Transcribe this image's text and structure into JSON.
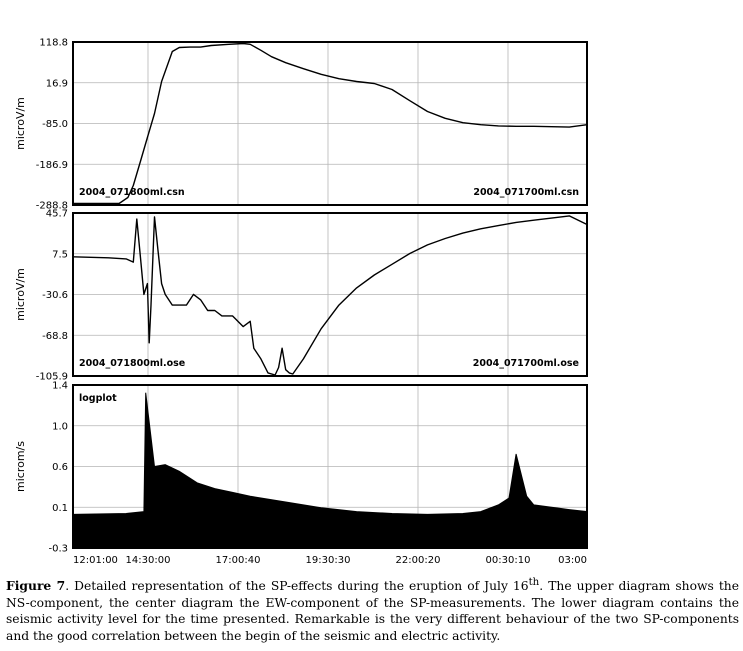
{
  "chart_data": [
    {
      "type": "line",
      "ylabel": "microV/m",
      "yticks": [
        "118.8",
        "16.9",
        "-85.0",
        "-186.9",
        "-288.8"
      ],
      "ylim": [
        -288.8,
        118.8
      ],
      "xlim": [
        0,
        14.5
      ],
      "grid": true,
      "annotation_left": "2004_071800ml.csn",
      "annotation_right": "2004_071700ml.csn",
      "series": [
        {
          "x": [
            0,
            0.3,
            0.8,
            1.3,
            1.55,
            1.7,
            1.9,
            2.1,
            2.3,
            2.5,
            2.8,
            3.0,
            3.3,
            3.6,
            3.9,
            4.4,
            4.8,
            5.0,
            5.3,
            5.6,
            6.0,
            6.5,
            7.0,
            7.5,
            8.0,
            8.5,
            9.0,
            9.5,
            10.0,
            10.5,
            11.0,
            11.5,
            12.0,
            12.5,
            13.0,
            13.5,
            14.0,
            14.5
          ],
          "y": [
            -285,
            -285,
            -285,
            -285,
            -270,
            -240,
            -180,
            -120,
            -60,
            20,
            95,
            105,
            106,
            106,
            110,
            113,
            115,
            113,
            98,
            82,
            67,
            52,
            38,
            27,
            20,
            15,
            0,
            -28,
            -55,
            -72,
            -83,
            -88,
            -91,
            -92,
            -92,
            -93,
            -94,
            -88
          ]
        }
      ]
    },
    {
      "type": "line",
      "ylabel": "microV/m",
      "yticks": [
        "45.7",
        "7.5",
        "-30.6",
        "-68.8",
        "-105.9"
      ],
      "ylim": [
        -105.9,
        45.7
      ],
      "xlim": [
        0,
        14.5
      ],
      "grid": true,
      "annotation_left": "2004_071800ml.ose",
      "annotation_right": "2004_071700ml.ose",
      "series": [
        {
          "x": [
            0,
            0.5,
            1.0,
            1.5,
            1.7,
            1.8,
            1.9,
            2.0,
            2.1,
            2.15,
            2.2,
            2.3,
            2.4,
            2.5,
            2.6,
            2.8,
            3.0,
            3.2,
            3.4,
            3.6,
            3.8,
            4.0,
            4.2,
            4.5,
            4.8,
            5.0,
            5.1,
            5.3,
            5.5,
            5.7,
            5.8,
            5.9,
            6.0,
            6.1,
            6.2,
            6.5,
            7.0,
            7.5,
            8.0,
            8.5,
            9.0,
            9.5,
            10.0,
            10.5,
            11.0,
            11.5,
            12.0,
            12.5,
            13.0,
            13.5,
            14.0,
            14.5
          ],
          "y": [
            5,
            4.5,
            4,
            3,
            0,
            40,
            5,
            -30,
            -20,
            -75,
            -40,
            42,
            10,
            -20,
            -30,
            -40,
            -40,
            -40,
            -30,
            -35,
            -45,
            -45,
            -50,
            -50,
            -60,
            -55,
            -80,
            -90,
            -103,
            -105,
            -98,
            -80,
            -100,
            -103,
            -104,
            -90,
            -62,
            -40,
            -24,
            -12,
            -2,
            8,
            16,
            22,
            27,
            31,
            34,
            37,
            39,
            41,
            43,
            35
          ]
        }
      ]
    },
    {
      "type": "area",
      "ylabel": "microm/s",
      "yticks": [
        "1.4",
        "1.0",
        "0.6",
        "0.1",
        "-0.3"
      ],
      "ylim": [
        -0.3,
        1.4
      ],
      "xlim": [
        0,
        14.5
      ],
      "grid": true,
      "annotation_left": "logplot",
      "xticks": [
        "12:01:00",
        "14:30:00",
        "17:00:40",
        "19:30:30",
        "22:00:20",
        "00:30:10",
        "03:00"
      ],
      "series": [
        {
          "x": [
            0,
            1.5,
            2.0,
            2.05,
            2.3,
            2.6,
            3.0,
            3.5,
            4.0,
            4.5,
            5.0,
            6.0,
            7.0,
            8.0,
            9.0,
            10.0,
            11.0,
            11.5,
            12.0,
            12.3,
            12.5,
            12.8,
            13.0,
            14.0,
            14.5
          ],
          "y": [
            0.05,
            0.06,
            0.08,
            1.32,
            0.55,
            0.57,
            0.5,
            0.38,
            0.32,
            0.28,
            0.24,
            0.18,
            0.12,
            0.08,
            0.06,
            0.05,
            0.06,
            0.08,
            0.15,
            0.22,
            0.68,
            0.24,
            0.15,
            0.1,
            0.08
          ]
        }
      ]
    }
  ],
  "caption": {
    "label": "Figure 7",
    "text_1": ". Detailed representation of the SP-effects during the eruption of July 16",
    "superscript": "th",
    "text_2": ". The upper diagram shows the NS-component, the center diagram the EW-component of the SP-measurements. The lower diagram contains the seismic activity level for the time presented. Remarkable is the very different behaviour of the two SP-components and the good correlation between the begin of the seismic and electric activity."
  }
}
